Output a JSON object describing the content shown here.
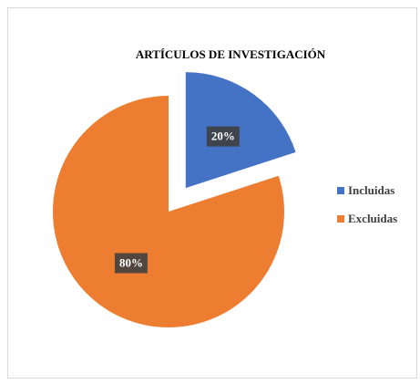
{
  "chart_data": {
    "type": "pie",
    "title": "ARTÍCULOS DE INVESTIGACIÓN",
    "categories": [
      "Incluidas",
      "Excluidas"
    ],
    "values": [
      20,
      80
    ],
    "value_labels": [
      "20%",
      "80%"
    ],
    "colors": [
      "#4472c4",
      "#ed7d31"
    ],
    "legend": "right"
  }
}
